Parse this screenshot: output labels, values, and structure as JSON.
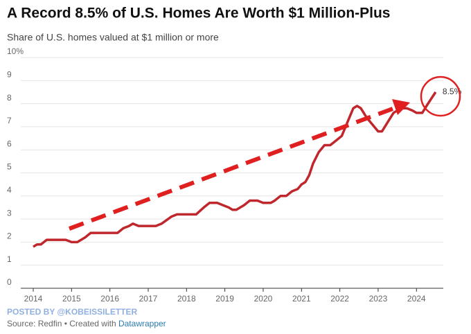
{
  "chart_data": {
    "type": "line",
    "title": "A Record 8.5% of U.S. Homes Are Worth $1 Million-Plus",
    "subtitle": "Share of U.S. homes valued at $1 million or more",
    "posted_by": "POSTED BY @KOBEISSILETTER",
    "source": "Source: Redfin • Created with",
    "source_link": "Datawrapper",
    "x": [
      2014.0,
      2014.1,
      2014.2,
      2014.35,
      2014.6,
      2014.85,
      2015.0,
      2015.15,
      2015.35,
      2015.5,
      2015.75,
      2016.0,
      2016.2,
      2016.35,
      2016.5,
      2016.6,
      2016.75,
      2017.0,
      2017.2,
      2017.35,
      2017.6,
      2017.75,
      2018.0,
      2018.25,
      2018.45,
      2018.6,
      2018.8,
      2018.95,
      2019.1,
      2019.2,
      2019.3,
      2019.5,
      2019.65,
      2019.85,
      2020.0,
      2020.2,
      2020.3,
      2020.45,
      2020.6,
      2020.75,
      2020.9,
      2021.0,
      2021.1,
      2021.2,
      2021.3,
      2021.45,
      2021.6,
      2021.75,
      2021.9,
      2022.05,
      2022.2,
      2022.35,
      2022.45,
      2022.55,
      2022.7,
      2022.85,
      2023.0,
      2023.1,
      2023.25,
      2023.4,
      2023.6,
      2023.75,
      2023.9,
      2024.0,
      2024.15,
      2024.3,
      2024.5
    ],
    "series": [
      {
        "name": "Share of homes",
        "color": "#c0272d",
        "values": [
          1.8,
          1.9,
          1.9,
          2.1,
          2.1,
          2.1,
          2.0,
          2.0,
          2.2,
          2.4,
          2.4,
          2.4,
          2.4,
          2.6,
          2.7,
          2.8,
          2.7,
          2.7,
          2.7,
          2.8,
          3.1,
          3.2,
          3.2,
          3.2,
          3.5,
          3.7,
          3.7,
          3.6,
          3.5,
          3.4,
          3.4,
          3.6,
          3.8,
          3.8,
          3.7,
          3.7,
          3.8,
          4.0,
          4.0,
          4.2,
          4.3,
          4.5,
          4.6,
          4.9,
          5.4,
          5.9,
          6.2,
          6.2,
          6.4,
          6.6,
          7.2,
          7.8,
          7.9,
          7.8,
          7.4,
          7.1,
          6.8,
          6.8,
          7.2,
          7.6,
          7.8,
          7.8,
          7.7,
          7.6,
          7.6,
          8.0,
          8.5
        ],
        "value_labels": [
          null,
          null,
          null,
          null,
          null,
          null,
          null,
          null,
          null,
          null,
          null,
          null,
          null,
          null,
          null,
          null,
          null,
          null,
          null,
          null,
          null,
          null,
          null,
          null,
          null,
          null,
          null,
          null,
          null,
          null,
          null,
          null,
          null,
          null,
          null,
          null,
          null,
          null,
          null,
          null,
          null,
          null,
          null,
          null,
          null,
          null,
          null,
          null,
          null,
          null,
          null,
          null,
          null,
          null,
          null,
          null,
          null,
          null,
          null,
          null,
          null,
          null,
          null,
          null,
          null,
          null,
          "8.5%"
        ]
      }
    ],
    "xlim": [
      2014,
      2024.7
    ],
    "xticks": [
      2014,
      2015,
      2016,
      2017,
      2018,
      2019,
      2020,
      2021,
      2022,
      2023,
      2024
    ],
    "ylim": [
      0,
      10
    ],
    "yticks": [
      0,
      1,
      2,
      3,
      4,
      5,
      6,
      7,
      8,
      9,
      {
        "value": 10,
        "label": "10%"
      }
    ],
    "grid": true
  }
}
